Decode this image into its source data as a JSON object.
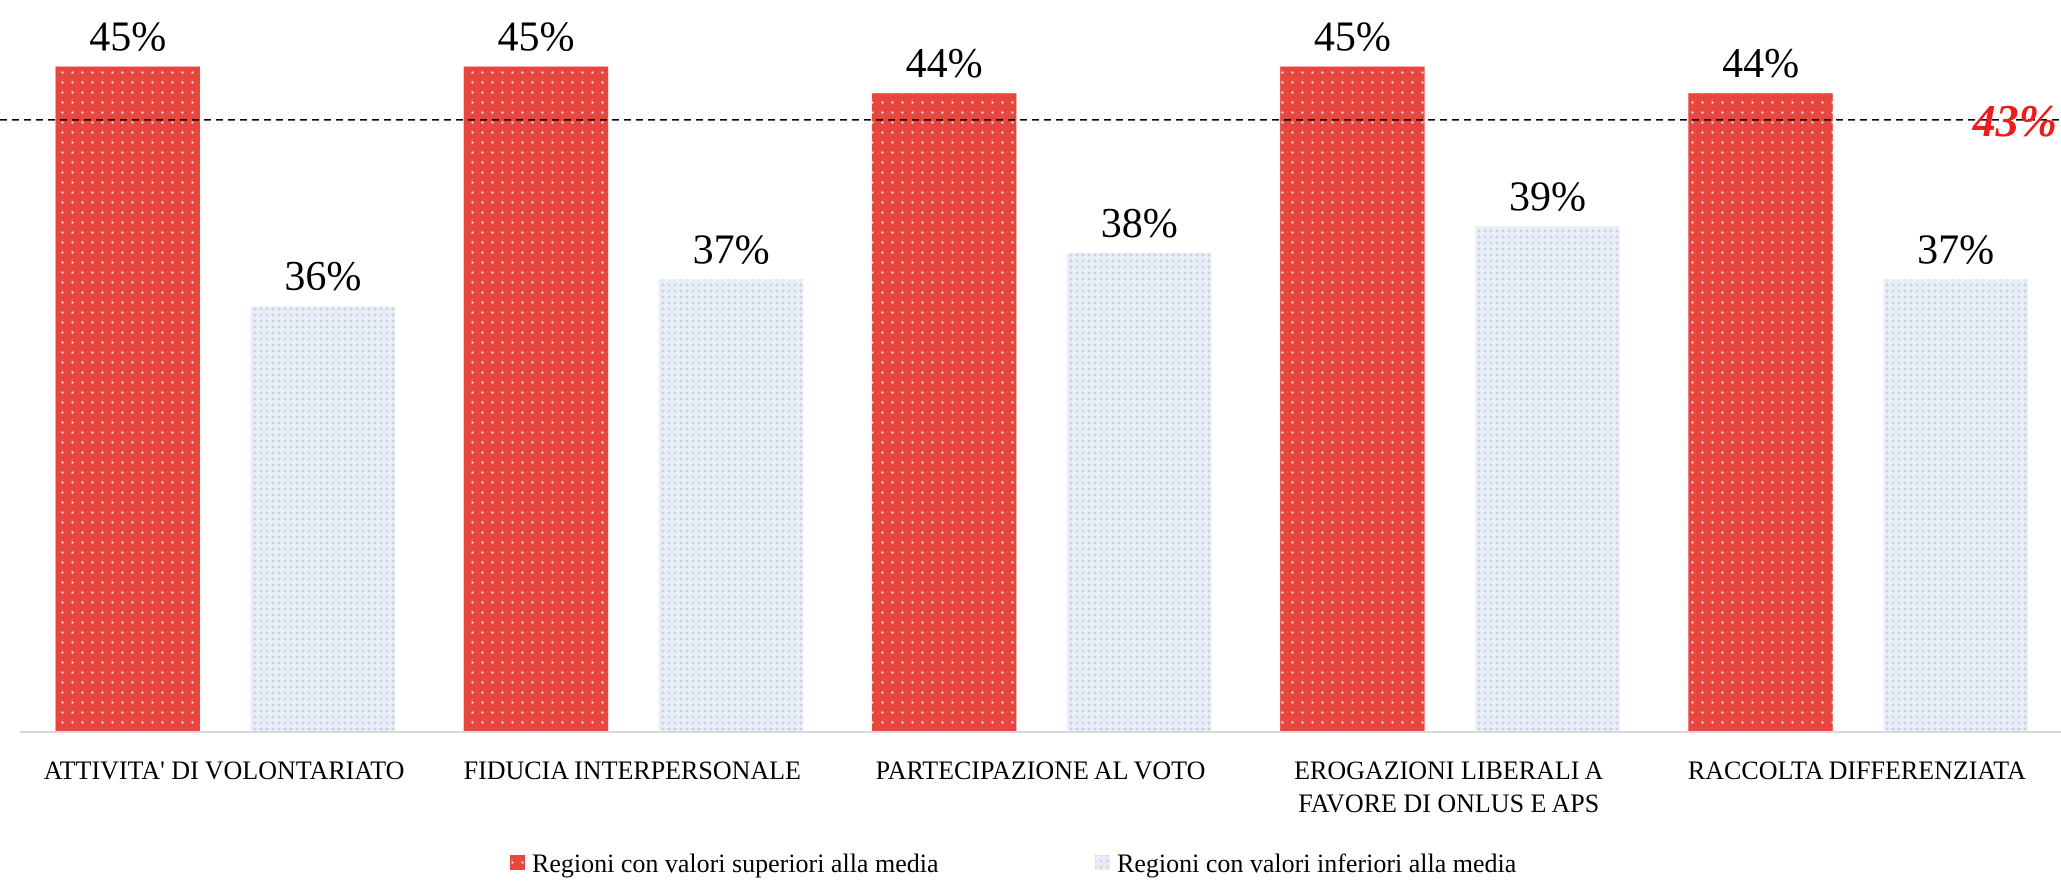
{
  "chart_data": {
    "type": "bar",
    "categories": [
      "ATTIVITA' DI VOLONTARIATO",
      "FIDUCIA INTERPERSONALE",
      "PARTECIPAZIONE AL VOTO",
      "EROGAZIONI LIBERALI A\nFAVORE DI ONLUS E APS",
      "RACCOLTA DIFFERENZIATA"
    ],
    "series": [
      {
        "name": "Regioni con valori superiori alla media",
        "color": "#e8473f",
        "values": [
          45,
          45,
          44,
          45,
          44
        ],
        "value_labels": [
          "45%",
          "45%",
          "44%",
          "45%",
          "44%"
        ]
      },
      {
        "name": "Regioni con valori inferiori alla media",
        "color": "#dbe4f0",
        "values": [
          36,
          37,
          38,
          39,
          37
        ],
        "value_labels": [
          "36%",
          "37%",
          "38%",
          "39%",
          "37%"
        ]
      }
    ],
    "ylim": [
      20,
      47.5
    ],
    "reference_line": {
      "value": 43,
      "label": "43%",
      "color": "#ee1c1c"
    },
    "legend": "bottom"
  }
}
